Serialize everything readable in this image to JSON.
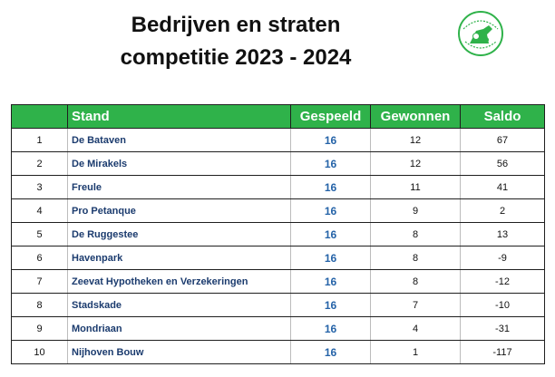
{
  "title": {
    "line1": "Bedrijven en straten",
    "line2": "competitie 2023 - 2024"
  },
  "logo": {
    "icon": "club-logo-icon",
    "color": "#2fb24a"
  },
  "table": {
    "headers": {
      "rank": "",
      "name": "Stand",
      "gespeeld": "Gespeeld",
      "gewonnen": "Gewonnen",
      "saldo": "Saldo"
    },
    "header_color": "#2fb24a",
    "rows": [
      {
        "rank": "1",
        "name": "De Bataven",
        "gespeeld": "16",
        "gewonnen": "12",
        "saldo": "67"
      },
      {
        "rank": "2",
        "name": "De Mirakels",
        "gespeeld": "16",
        "gewonnen": "12",
        "saldo": "56"
      },
      {
        "rank": "3",
        "name": "Freule",
        "gespeeld": "16",
        "gewonnen": "11",
        "saldo": "41"
      },
      {
        "rank": "4",
        "name": "Pro Petanque",
        "gespeeld": "16",
        "gewonnen": "9",
        "saldo": "2"
      },
      {
        "rank": "5",
        "name": "De Ruggestee",
        "gespeeld": "16",
        "gewonnen": "8",
        "saldo": "13"
      },
      {
        "rank": "6",
        "name": "Havenpark",
        "gespeeld": "16",
        "gewonnen": "8",
        "saldo": "-9"
      },
      {
        "rank": "7",
        "name": "Zeevat Hypotheken en Verzekeringen",
        "gespeeld": "16",
        "gewonnen": "8",
        "saldo": "-12"
      },
      {
        "rank": "8",
        "name": "Stadskade",
        "gespeeld": "16",
        "gewonnen": "7",
        "saldo": "-10"
      },
      {
        "rank": "9",
        "name": "Mondriaan",
        "gespeeld": "16",
        "gewonnen": "4",
        "saldo": "-31"
      },
      {
        "rank": "10",
        "name": "Nijhoven Bouw",
        "gespeeld": "16",
        "gewonnen": "1",
        "saldo": "-117"
      }
    ]
  }
}
